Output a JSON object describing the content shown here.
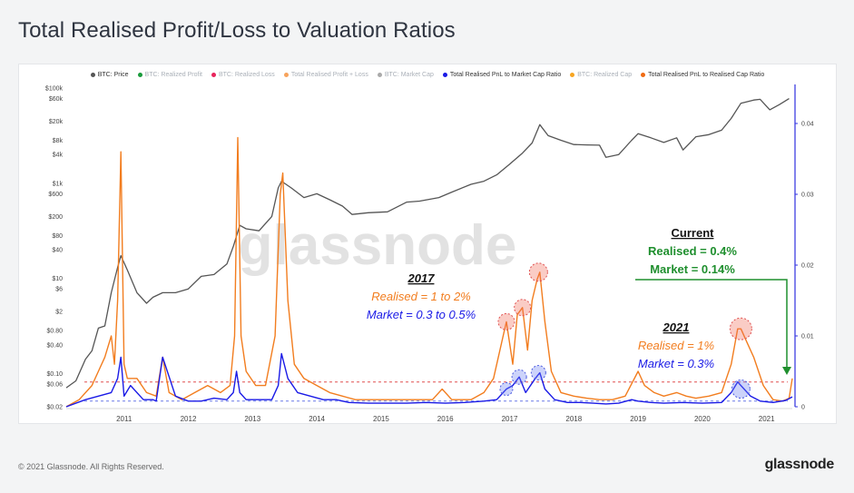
{
  "title": "Total Realised Profit/Loss to Valuation Ratios",
  "footer": {
    "copyright": "© 2021 Glassnode. All Rights Reserved.",
    "brand": "glassnode"
  },
  "watermark": "glassnode",
  "legend": [
    {
      "label": "BTC: Price",
      "color": "#555555",
      "active": true
    },
    {
      "label": "BTC: Realized Profit",
      "color": "#1a9b3c",
      "active": false
    },
    {
      "label": "BTC: Realized Loss",
      "color": "#e8245c",
      "active": false
    },
    {
      "label": "Total Realised Profit + Loss",
      "color": "#f7a35c",
      "active": false
    },
    {
      "label": "BTC: Market Cap",
      "color": "#aaaaaa",
      "active": false
    },
    {
      "label": "Total Realised PnL to Market Cap Ratio",
      "color": "#1a1ae6",
      "active": true
    },
    {
      "label": "BTC: Realized Cap",
      "color": "#f7a521",
      "active": false
    },
    {
      "label": "Total Realised PnL to Realised Cap Ratio",
      "color": "#f06a12",
      "active": true
    }
  ],
  "annotations": {
    "y2017": {
      "heading": "2017",
      "realised": "Realised = 1 to 2%",
      "market": "Market = 0.3 to 0.5%"
    },
    "y2021": {
      "heading": "2021",
      "realised": "Realised = 1%",
      "market": "Market = 0.3%"
    },
    "current": {
      "heading": "Current",
      "realised": "Realised = 0.4%",
      "market": "Market = 0.14%"
    }
  },
  "colors": {
    "price": "#555555",
    "market": "#1a1ae6",
    "realised": "#f27d1f",
    "current": "#1f8f2e",
    "red_dash": "#e05050",
    "blue_dash": "#6a7ae8"
  },
  "chart_data": {
    "type": "line",
    "x_ticks": [
      "2011",
      "2012",
      "2013",
      "2014",
      "2015",
      "2016",
      "2017",
      "2018",
      "2019",
      "2020",
      "2021"
    ],
    "y_left_ticks": [
      "$100k",
      "$60k",
      "$20k",
      "$8k",
      "$4k",
      "$1k",
      "$600",
      "$200",
      "$80",
      "$40",
      "$10",
      "$6",
      "$2",
      "$0.80",
      "$0.40",
      "$0.10",
      "$0.06",
      "$0.02"
    ],
    "y_left_values": [
      100000,
      60000,
      20000,
      8000,
      4000,
      1000,
      600,
      200,
      80,
      40,
      10,
      6,
      2,
      0.8,
      0.4,
      0.1,
      0.06,
      0.02
    ],
    "y_left_scale": "log",
    "y_left_range": [
      0.02,
      100000
    ],
    "y_right_ticks": [
      "0.04",
      "0.03",
      "0.02",
      "0.01",
      "0"
    ],
    "y_right_values": [
      0.04,
      0.03,
      0.02,
      0.01,
      0
    ],
    "y_right_range": [
      0,
      0.045
    ],
    "x_range": [
      2010.6,
      2021.9
    ],
    "series": [
      {
        "name": "BTC: Price",
        "axis": "left",
        "x": [
          2010.6,
          2010.75,
          2010.9,
          2011.0,
          2011.1,
          2011.2,
          2011.3,
          2011.4,
          2011.45,
          2011.55,
          2011.7,
          2011.85,
          2011.95,
          2012.1,
          2012.3,
          2012.5,
          2012.7,
          2012.9,
          2013.1,
          2013.2,
          2013.3,
          2013.4,
          2013.6,
          2013.8,
          2013.9,
          2013.95,
          2014.1,
          2014.3,
          2014.5,
          2014.7,
          2014.9,
          2015.05,
          2015.3,
          2015.6,
          2015.9,
          2016.1,
          2016.4,
          2016.6,
          2016.9,
          2017.1,
          2017.3,
          2017.5,
          2017.7,
          2017.85,
          2017.97,
          2018.1,
          2018.3,
          2018.5,
          2018.7,
          2018.9,
          2019.0,
          2019.2,
          2019.4,
          2019.5,
          2019.7,
          2019.9,
          2020.1,
          2020.2,
          2020.4,
          2020.6,
          2020.8,
          2020.95,
          2021.1,
          2021.3,
          2021.4,
          2021.55,
          2021.7,
          2021.85
        ],
        "y": [
          0.05,
          0.07,
          0.2,
          0.3,
          0.9,
          1,
          5,
          17,
          30,
          15,
          5,
          3,
          4,
          5,
          5,
          6,
          11,
          12,
          20,
          47,
          130,
          110,
          100,
          200,
          800,
          1100,
          800,
          500,
          600,
          450,
          330,
          220,
          240,
          250,
          400,
          420,
          500,
          650,
          950,
          1100,
          1500,
          2500,
          4300,
          7000,
          17000,
          10000,
          8000,
          6500,
          6400,
          6300,
          3500,
          4000,
          8000,
          11000,
          9000,
          7200,
          9000,
          5000,
          9500,
          10500,
          13000,
          23000,
          48000,
          56000,
          58000,
          35000,
          45000,
          60000
        ]
      },
      {
        "name": "Total Realised PnL to Market Cap Ratio",
        "axis": "right",
        "x": [
          2010.6,
          2010.9,
          2011.1,
          2011.3,
          2011.4,
          2011.45,
          2011.5,
          2011.6,
          2011.8,
          2011.95,
          2012.0,
          2012.1,
          2012.3,
          2012.5,
          2012.7,
          2012.9,
          2013.1,
          2013.2,
          2013.25,
          2013.3,
          2013.4,
          2013.6,
          2013.8,
          2013.9,
          2013.95,
          2014.05,
          2014.2,
          2014.4,
          2014.6,
          2014.8,
          2015.0,
          2015.3,
          2015.6,
          2015.9,
          2016.2,
          2016.5,
          2016.8,
          2017.1,
          2017.3,
          2017.45,
          2017.55,
          2017.65,
          2017.75,
          2017.9,
          2017.97,
          2018.05,
          2018.2,
          2018.4,
          2018.6,
          2018.8,
          2019.0,
          2019.2,
          2019.4,
          2019.5,
          2019.7,
          2019.9,
          2020.2,
          2020.5,
          2020.8,
          2020.95,
          2021.05,
          2021.15,
          2021.25,
          2021.4,
          2021.6,
          2021.8,
          2021.9
        ],
        "y": [
          0.0,
          0.001,
          0.0015,
          0.002,
          0.004,
          0.007,
          0.0015,
          0.003,
          0.001,
          0.001,
          0.0008,
          0.007,
          0.0015,
          0.0008,
          0.0008,
          0.0012,
          0.001,
          0.002,
          0.005,
          0.002,
          0.001,
          0.001,
          0.001,
          0.003,
          0.0075,
          0.004,
          0.002,
          0.0015,
          0.001,
          0.001,
          0.0006,
          0.0005,
          0.0005,
          0.0005,
          0.0006,
          0.0005,
          0.0006,
          0.0008,
          0.001,
          0.0025,
          0.003,
          0.0042,
          0.002,
          0.004,
          0.0048,
          0.0025,
          0.001,
          0.0006,
          0.0006,
          0.0005,
          0.0004,
          0.0005,
          0.001,
          0.0008,
          0.0006,
          0.0005,
          0.0006,
          0.0005,
          0.0006,
          0.002,
          0.0035,
          0.0025,
          0.0015,
          0.0008,
          0.0006,
          0.0009,
          0.0014
        ]
      },
      {
        "name": "Total Realised PnL to Realised Cap Ratio",
        "axis": "right",
        "x": [
          2010.6,
          2010.8,
          2011.0,
          2011.1,
          2011.2,
          2011.3,
          2011.35,
          2011.4,
          2011.45,
          2011.5,
          2011.55,
          2011.7,
          2011.85,
          2012.0,
          2012.1,
          2012.2,
          2012.4,
          2012.6,
          2012.8,
          2013.0,
          2013.15,
          2013.22,
          2013.27,
          2013.32,
          2013.4,
          2013.55,
          2013.7,
          2013.85,
          2013.93,
          2013.97,
          2014.05,
          2014.15,
          2014.3,
          2014.5,
          2014.7,
          2014.9,
          2015.1,
          2015.4,
          2015.7,
          2016.0,
          2016.3,
          2016.45,
          2016.6,
          2016.9,
          2017.1,
          2017.25,
          2017.4,
          2017.45,
          2017.55,
          2017.62,
          2017.7,
          2017.78,
          2017.85,
          2017.93,
          2017.97,
          2018.05,
          2018.15,
          2018.3,
          2018.5,
          2018.7,
          2018.9,
          2019.1,
          2019.3,
          2019.5,
          2019.6,
          2019.75,
          2019.9,
          2020.1,
          2020.25,
          2020.4,
          2020.6,
          2020.8,
          2020.95,
          2021.05,
          2021.1,
          2021.2,
          2021.3,
          2021.45,
          2021.6,
          2021.75,
          2021.85,
          2021.9
        ],
        "y": [
          0.0,
          0.001,
          0.003,
          0.005,
          0.007,
          0.01,
          0.006,
          0.015,
          0.036,
          0.006,
          0.004,
          0.004,
          0.002,
          0.0015,
          0.007,
          0.002,
          0.001,
          0.002,
          0.003,
          0.002,
          0.003,
          0.01,
          0.038,
          0.01,
          0.005,
          0.003,
          0.003,
          0.01,
          0.03,
          0.033,
          0.015,
          0.006,
          0.004,
          0.003,
          0.002,
          0.0015,
          0.001,
          0.001,
          0.001,
          0.001,
          0.001,
          0.0025,
          0.001,
          0.001,
          0.002,
          0.004,
          0.01,
          0.012,
          0.006,
          0.013,
          0.014,
          0.008,
          0.015,
          0.018,
          0.019,
          0.012,
          0.005,
          0.002,
          0.0015,
          0.0012,
          0.001,
          0.001,
          0.0015,
          0.005,
          0.003,
          0.002,
          0.0015,
          0.002,
          0.0015,
          0.0012,
          0.0015,
          0.002,
          0.006,
          0.011,
          0.011,
          0.009,
          0.007,
          0.003,
          0.001,
          0.0008,
          0.0012,
          0.004
        ]
      }
    ],
    "threshold_lines": [
      {
        "axis": "right",
        "value": 0.0035,
        "color": "#e05050",
        "style": "dashed"
      },
      {
        "axis": "right",
        "value": 0.0008,
        "color": "#6a7ae8",
        "style": "dashed"
      }
    ],
    "grid": false,
    "legend_position": "top"
  }
}
